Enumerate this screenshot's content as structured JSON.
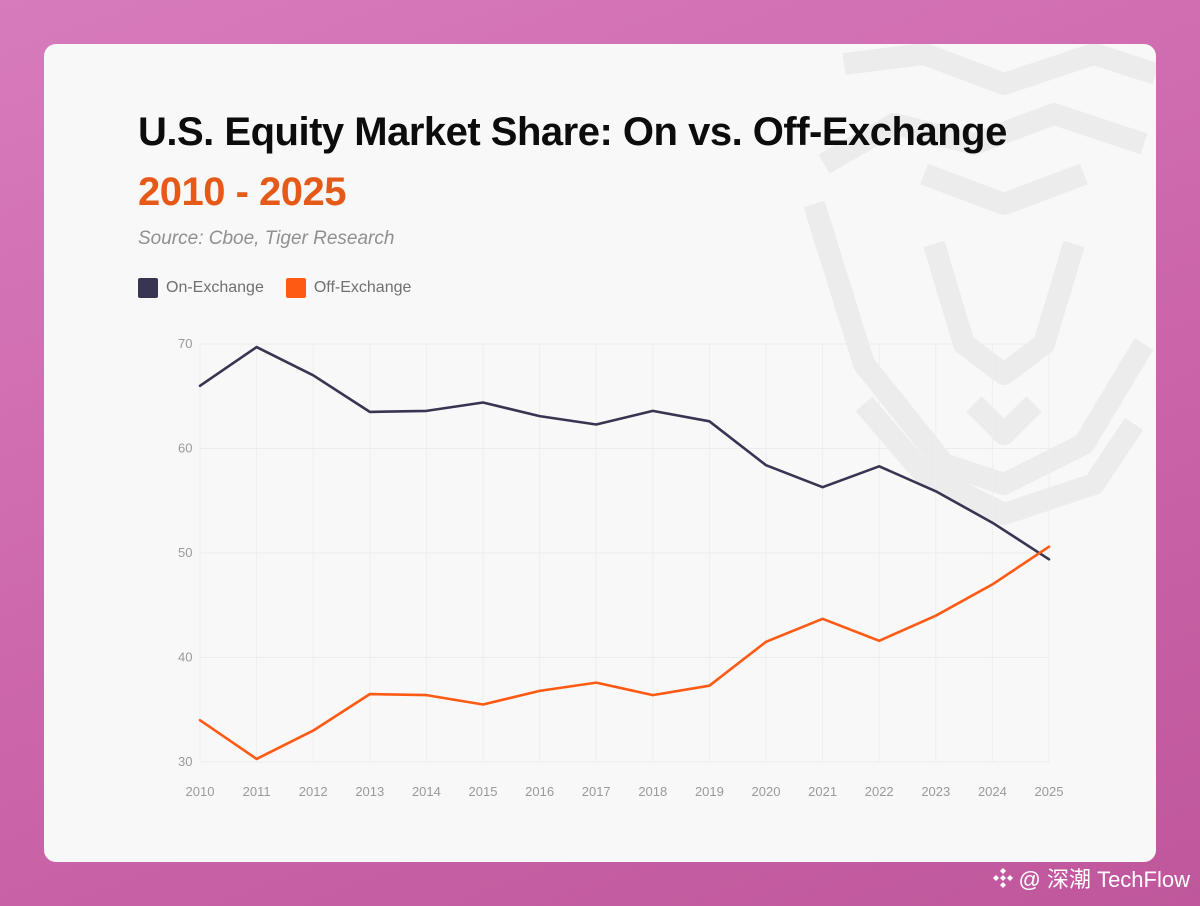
{
  "header": {
    "title": "U.S. Equity Market Share: On vs. Off-Exchange",
    "subtitle": "2010 - 2025",
    "source": "Source: Cboe, Tiger Research"
  },
  "legend": [
    {
      "label": "On-Exchange",
      "color": "#383553"
    },
    {
      "label": "Off-Exchange",
      "color": "#ff5a14"
    }
  ],
  "chart_data": {
    "type": "line",
    "title": "U.S. Equity Market Share: On vs. Off-Exchange",
    "subtitle": "2010 - 2025",
    "xlabel": "",
    "ylabel": "",
    "x": [
      "2010",
      "2011",
      "2012",
      "2013",
      "2014",
      "2015",
      "2016",
      "2017",
      "2018",
      "2019",
      "2020",
      "2021",
      "2022",
      "2023",
      "2024",
      "2025"
    ],
    "ylim": [
      30,
      70
    ],
    "yticks": [
      30,
      40,
      50,
      60,
      70
    ],
    "grid": true,
    "legend_position": "top-left",
    "series": [
      {
        "name": "On-Exchange",
        "color": "#383553",
        "values": [
          66.0,
          69.7,
          67.0,
          63.5,
          63.6,
          64.4,
          63.1,
          62.3,
          63.6,
          62.6,
          58.4,
          56.3,
          58.3,
          55.9,
          52.9,
          49.4
        ]
      },
      {
        "name": "Off-Exchange",
        "color": "#ff5a14",
        "values": [
          34.0,
          30.3,
          33.0,
          36.5,
          36.4,
          35.5,
          36.8,
          37.6,
          36.4,
          37.3,
          41.5,
          43.7,
          41.6,
          44.0,
          47.0,
          50.6
        ]
      }
    ]
  },
  "watermark": {
    "icon": "tiger-head-icon"
  },
  "brand": {
    "text": "@ 深潮 TechFlow",
    "icon": "diamond-logo-icon"
  }
}
